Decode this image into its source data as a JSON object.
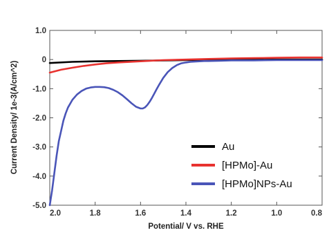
{
  "chart_data": {
    "type": "line",
    "title": "",
    "xlabel": "Potential/ V vs. RHE",
    "ylabel": "Current Density/ 1e-3(A/cm^2)",
    "xlim": [
      2.0,
      0.8
    ],
    "ylim": [
      -5.0,
      1.0
    ],
    "x_reversed": true,
    "grid": false,
    "legend_position": "lower-right",
    "x_ticks": [
      2.0,
      1.8,
      1.6,
      1.4,
      1.2,
      1.0,
      0.8
    ],
    "x_tick_labels": [
      "2.0",
      "1.8",
      "1.6",
      "1.4",
      "1.2",
      "1.0",
      "0.8"
    ],
    "y_ticks": [
      1.0,
      0,
      -1.0,
      -2.0,
      -3.0,
      -4.0,
      -5.0
    ],
    "y_tick_labels": [
      "1.0",
      "0",
      "-1.0",
      "-2.0",
      "-3.0",
      "-4.0",
      "-5.0"
    ],
    "series": [
      {
        "name": "Au",
        "color": "#000000",
        "x": [
          2.0,
          1.9,
          1.8,
          1.7,
          1.6,
          1.5,
          1.4,
          1.3,
          1.2,
          1.1,
          1.0,
          0.9,
          0.8
        ],
        "y": [
          -0.12,
          -0.08,
          -0.06,
          -0.05,
          -0.04,
          -0.03,
          -0.02,
          -0.01,
          0.0,
          0.0,
          0.0,
          0.0,
          0.0
        ]
      },
      {
        "name": "[HPMo]-Au",
        "color": "#e8322f",
        "x": [
          2.0,
          1.95,
          1.9,
          1.85,
          1.8,
          1.75,
          1.7,
          1.6,
          1.5,
          1.4,
          1.3,
          1.2,
          1.1,
          1.0,
          0.9,
          0.8
        ],
        "y": [
          -0.45,
          -0.35,
          -0.28,
          -0.22,
          -0.17,
          -0.13,
          -0.1,
          -0.06,
          -0.02,
          0.0,
          0.02,
          0.04,
          0.05,
          0.06,
          0.07,
          0.07
        ]
      },
      {
        "name": "[HPMo]NPs-Au",
        "color": "#4a55b8",
        "x": [
          2.0,
          1.99,
          1.98,
          1.97,
          1.96,
          1.95,
          1.94,
          1.93,
          1.92,
          1.9,
          1.88,
          1.86,
          1.84,
          1.82,
          1.8,
          1.78,
          1.76,
          1.74,
          1.72,
          1.7,
          1.68,
          1.66,
          1.64,
          1.62,
          1.6,
          1.59,
          1.58,
          1.57,
          1.56,
          1.55,
          1.54,
          1.53,
          1.52,
          1.5,
          1.48,
          1.46,
          1.44,
          1.42,
          1.4,
          1.38,
          1.36,
          1.34,
          1.32,
          1.3,
          1.25,
          1.2,
          1.1,
          1.0,
          0.9,
          0.8
        ],
        "y": [
          -5.0,
          -4.5,
          -3.9,
          -3.3,
          -2.8,
          -2.45,
          -2.1,
          -1.85,
          -1.65,
          -1.38,
          -1.2,
          -1.08,
          -1.0,
          -0.96,
          -0.94,
          -0.94,
          -0.95,
          -0.98,
          -1.04,
          -1.12,
          -1.23,
          -1.36,
          -1.5,
          -1.62,
          -1.68,
          -1.68,
          -1.64,
          -1.56,
          -1.45,
          -1.32,
          -1.18,
          -1.03,
          -0.89,
          -0.63,
          -0.43,
          -0.29,
          -0.19,
          -0.13,
          -0.1,
          -0.08,
          -0.07,
          -0.06,
          -0.05,
          -0.05,
          -0.04,
          -0.03,
          -0.03,
          -0.02,
          -0.02,
          -0.02
        ]
      }
    ]
  }
}
